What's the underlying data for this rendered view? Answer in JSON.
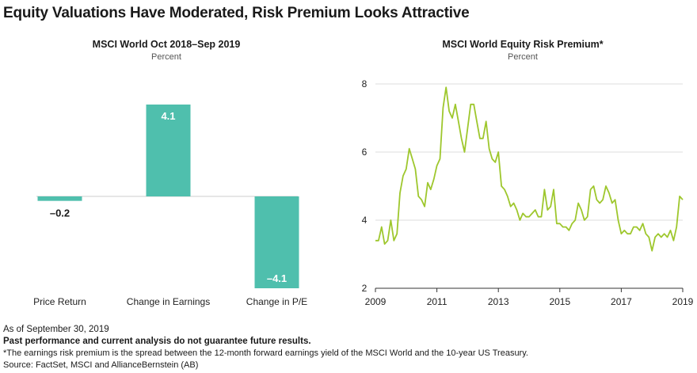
{
  "page_title": "Equity Valuations Have Moderated, Risk Premium Looks Attractive",
  "colors": {
    "bar": "#4fbfad",
    "line": "#9ec72d",
    "grid": "#dcdcdc",
    "axis": "#333333"
  },
  "chart_data": [
    {
      "type": "bar",
      "title": "MSCI World Oct 2018–Sep 2019",
      "subtitle": "Percent",
      "categories": [
        "Price Return",
        "Change in Earnings",
        "Change in P/E"
      ],
      "values": [
        -0.2,
        4.1,
        -4.1
      ],
      "value_labels": [
        "–0.2",
        "4.1",
        "–4.1"
      ],
      "ylim": [
        -4.1,
        4.1
      ]
    },
    {
      "type": "line",
      "title": "MSCI World Equity Risk Premium*",
      "subtitle": "Percent",
      "x_ticks": [
        "2009",
        "2011",
        "2013",
        "2015",
        "2017",
        "2019"
      ],
      "y_ticks": [
        "2",
        "4",
        "6",
        "8"
      ],
      "xlim": [
        2009,
        2019
      ],
      "ylim": [
        2,
        8
      ],
      "series": [
        {
          "name": "Equity Risk Premium",
          "x": [
            2009.0,
            2009.1,
            2009.2,
            2009.3,
            2009.4,
            2009.5,
            2009.6,
            2009.7,
            2009.8,
            2009.9,
            2010.0,
            2010.1,
            2010.2,
            2010.3,
            2010.4,
            2010.5,
            2010.6,
            2010.7,
            2010.8,
            2010.9,
            2011.0,
            2011.1,
            2011.2,
            2011.3,
            2011.4,
            2011.5,
            2011.6,
            2011.7,
            2011.8,
            2011.9,
            2012.0,
            2012.1,
            2012.2,
            2012.3,
            2012.4,
            2012.5,
            2012.6,
            2012.7,
            2012.8,
            2012.9,
            2013.0,
            2013.1,
            2013.2,
            2013.3,
            2013.4,
            2013.5,
            2013.6,
            2013.7,
            2013.8,
            2013.9,
            2014.0,
            2014.1,
            2014.2,
            2014.3,
            2014.4,
            2014.5,
            2014.6,
            2014.7,
            2014.8,
            2014.9,
            2015.0,
            2015.1,
            2015.2,
            2015.3,
            2015.4,
            2015.5,
            2015.6,
            2015.7,
            2015.8,
            2015.9,
            2016.0,
            2016.1,
            2016.2,
            2016.3,
            2016.4,
            2016.5,
            2016.6,
            2016.7,
            2016.8,
            2016.9,
            2017.0,
            2017.1,
            2017.2,
            2017.3,
            2017.4,
            2017.5,
            2017.6,
            2017.7,
            2017.8,
            2017.9,
            2018.0,
            2018.1,
            2018.2,
            2018.3,
            2018.4,
            2018.5,
            2018.6,
            2018.7,
            2018.8,
            2018.9,
            2019.0
          ],
          "values": [
            3.4,
            3.4,
            3.8,
            3.3,
            3.4,
            4.0,
            3.4,
            3.6,
            4.8,
            5.3,
            5.5,
            6.1,
            5.8,
            5.5,
            4.7,
            4.6,
            4.4,
            5.1,
            4.9,
            5.2,
            5.6,
            5.8,
            7.3,
            7.9,
            7.2,
            7.0,
            7.4,
            6.9,
            6.4,
            6.0,
            6.7,
            7.4,
            7.4,
            6.9,
            6.4,
            6.4,
            6.9,
            6.1,
            5.8,
            5.7,
            6.0,
            5.0,
            4.9,
            4.7,
            4.4,
            4.5,
            4.3,
            4.0,
            4.2,
            4.1,
            4.1,
            4.2,
            4.3,
            4.1,
            4.1,
            4.9,
            4.3,
            4.4,
            4.9,
            3.9,
            3.9,
            3.8,
            3.8,
            3.7,
            3.9,
            4.0,
            4.5,
            4.3,
            4.0,
            4.1,
            4.9,
            5.0,
            4.6,
            4.5,
            4.6,
            5.0,
            4.8,
            4.5,
            4.6,
            4.0,
            3.6,
            3.7,
            3.6,
            3.6,
            3.8,
            3.8,
            3.7,
            3.9,
            3.6,
            3.5,
            3.1,
            3.5,
            3.6,
            3.5,
            3.6,
            3.5,
            3.7,
            3.4,
            3.8,
            4.7,
            4.6
          ]
        }
      ]
    }
  ],
  "footer": {
    "date": "As of September 30, 2019",
    "disclaimer": "Past performance and current analysis do not guarantee future results.",
    "note": "*The earnings risk premium is the spread between the 12-month forward earnings yield of the MSCI World and the 10-year US Treasury.",
    "source": "Source: FactSet, MSCI and AllianceBernstein (AB)"
  }
}
